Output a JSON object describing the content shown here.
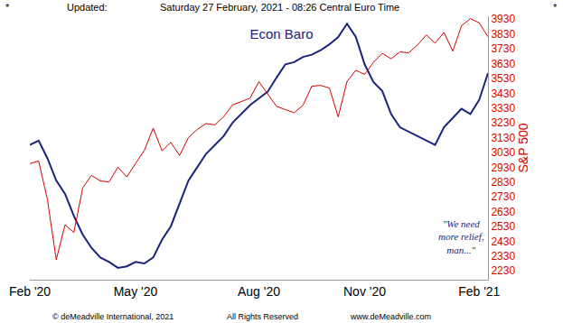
{
  "chart_data": {
    "type": "line",
    "title": "Econ Baro",
    "ylabel": "S&P 500",
    "header": {
      "left": "*",
      "label": "Updated:",
      "date": "Saturday 27 February, 2021 - 08:26 Central Euro Time",
      "right": "*"
    },
    "footer": {
      "copyright": "© deMeadville International, 2021",
      "rights": "All Rights Reserved",
      "url": "www.deMeadville.com"
    },
    "annotations": [
      {
        "lines": [
          "\"We need",
          "more relief,",
          "man...\""
        ],
        "color": "#1a237e"
      }
    ],
    "categories": [
      "Feb '20",
      null,
      null,
      null,
      null,
      null,
      null,
      null,
      null,
      null,
      null,
      null,
      "May '20",
      null,
      null,
      null,
      null,
      null,
      null,
      null,
      null,
      null,
      null,
      null,
      null,
      null,
      "Aug '20",
      null,
      null,
      null,
      null,
      null,
      null,
      null,
      null,
      null,
      null,
      null,
      "Nov '20",
      null,
      null,
      null,
      null,
      null,
      null,
      null,
      null,
      null,
      null,
      null,
      null,
      "Feb '21",
      null
    ],
    "series": [
      {
        "color": "#1a237e",
        "values": [
          3080,
          3110,
          2990,
          2840,
          2750,
          2600,
          2475,
          2385,
          2320,
          2290,
          2250,
          2260,
          2290,
          2280,
          2320,
          2440,
          2530,
          2685,
          2840,
          2930,
          3020,
          3080,
          3140,
          3230,
          3290,
          3350,
          3395,
          3440,
          3535,
          3625,
          3640,
          3675,
          3690,
          3720,
          3760,
          3810,
          3900,
          3810,
          3625,
          3505,
          3445,
          3290,
          3200,
          3170,
          3140,
          3110,
          3080,
          3200,
          3260,
          3325,
          3290,
          3385,
          3565
        ]
      },
      {
        "color": "#d40000",
        "values": [
          2954,
          2972,
          2711,
          2305,
          2541,
          2489,
          2790,
          2875,
          2837,
          2831,
          2930,
          2864,
          2955,
          3044,
          3194,
          3041,
          3098,
          3009,
          3130,
          3185,
          3225,
          3216,
          3271,
          3351,
          3373,
          3397,
          3508,
          3427,
          3341,
          3319,
          3298,
          3348,
          3477,
          3483,
          3465,
          3270,
          3509,
          3585,
          3557,
          3638,
          3699,
          3663,
          3709,
          3703,
          3756,
          3824,
          3768,
          3841,
          3714,
          3886,
          3934,
          3906,
          3811
        ]
      }
    ],
    "ylim": [
      2170,
      3950
    ],
    "yticks": [
      2230,
      2330,
      2430,
      2530,
      2630,
      2730,
      2830,
      2930,
      3030,
      3130,
      3230,
      3330,
      3430,
      3530,
      3630,
      3730,
      3830,
      3930
    ],
    "grid": false
  }
}
